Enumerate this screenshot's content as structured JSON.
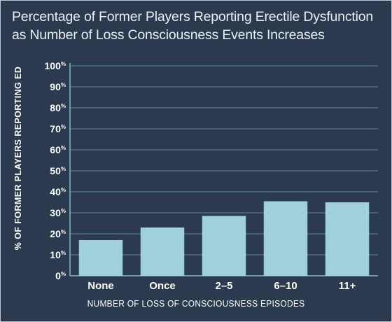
{
  "chart_data": {
    "type": "bar",
    "title_lines": [
      "Percentage of Former Players Reporting Erectile Dysfunction",
      "as Number of Loss Consciousness Events Increases"
    ],
    "xlabel": "NUMBER OF LOSS OF CONSCIOUSNESS EPISODES",
    "ylabel": "% OF FORMER PLAYERS REPORTING ED",
    "categories": [
      "None",
      "Once",
      "2–5",
      "6–10",
      "11+"
    ],
    "values": [
      17,
      23,
      28.5,
      35.5,
      35
    ],
    "ylim": [
      0,
      100
    ],
    "yticks": [
      0,
      10,
      20,
      30,
      40,
      50,
      60,
      70,
      80,
      90,
      100
    ],
    "tick_suffix": "%",
    "grid": true,
    "legend": "none",
    "colors": {
      "background": "#2b3a4e",
      "bar": "#9fd0dc",
      "grid": "#5d8aa0",
      "axis": "#7fb7c9",
      "text": "#ffffff"
    }
  }
}
